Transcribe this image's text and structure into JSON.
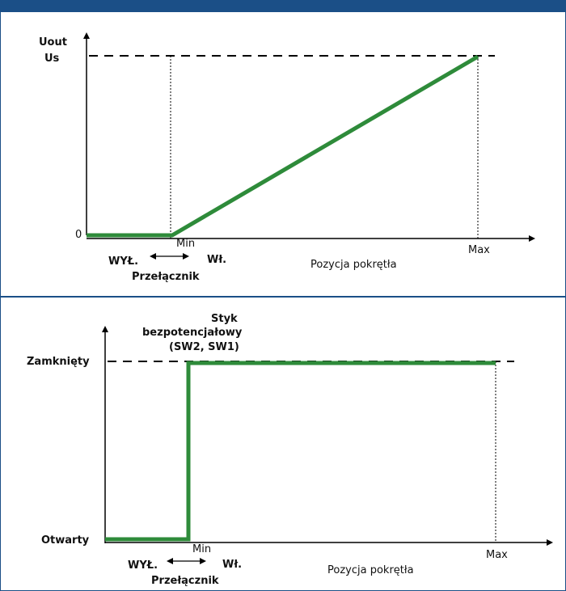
{
  "colors": {
    "frame": "#1b4f87",
    "characteristic": "#2e8b3a",
    "axis": "#000000"
  },
  "chart_data": [
    {
      "type": "line",
      "title": "",
      "ylabel_line1": "Uout",
      "ylabel_line2": "Us",
      "xlabel": "Pozycja pokrętła",
      "y_origin_label": "0",
      "x_ticks": [
        "Min",
        "Max"
      ],
      "switch": {
        "off": "WYŁ.",
        "on": "Wł.",
        "label": "Przełącznik"
      },
      "series": [
        {
          "x": [
            "0",
            "Min",
            "Max"
          ],
          "y": [
            "0",
            "0",
            "Us"
          ]
        }
      ],
      "reference_line": "Us",
      "grid": false
    },
    {
      "type": "line",
      "title": "",
      "ylabel_line1": "Styk",
      "ylabel_line2": "bezpotencjałowy",
      "ylabel_line3": "(SW2, SW1)",
      "xlabel": "Pozycja pokrętła",
      "y_ticks": [
        "Zamknięty",
        "Otwarty"
      ],
      "x_ticks": [
        "Min",
        "Max"
      ],
      "switch": {
        "off": "WYŁ.",
        "on": "Wł.",
        "label": "Przełącznik"
      },
      "series": [
        {
          "x": [
            "0",
            "Min",
            "Min",
            "Max"
          ],
          "y": [
            "Otwarty",
            "Otwarty",
            "Zamknięty",
            "Zamknięty"
          ]
        }
      ],
      "reference_line": "Zamknięty",
      "grid": false
    }
  ]
}
